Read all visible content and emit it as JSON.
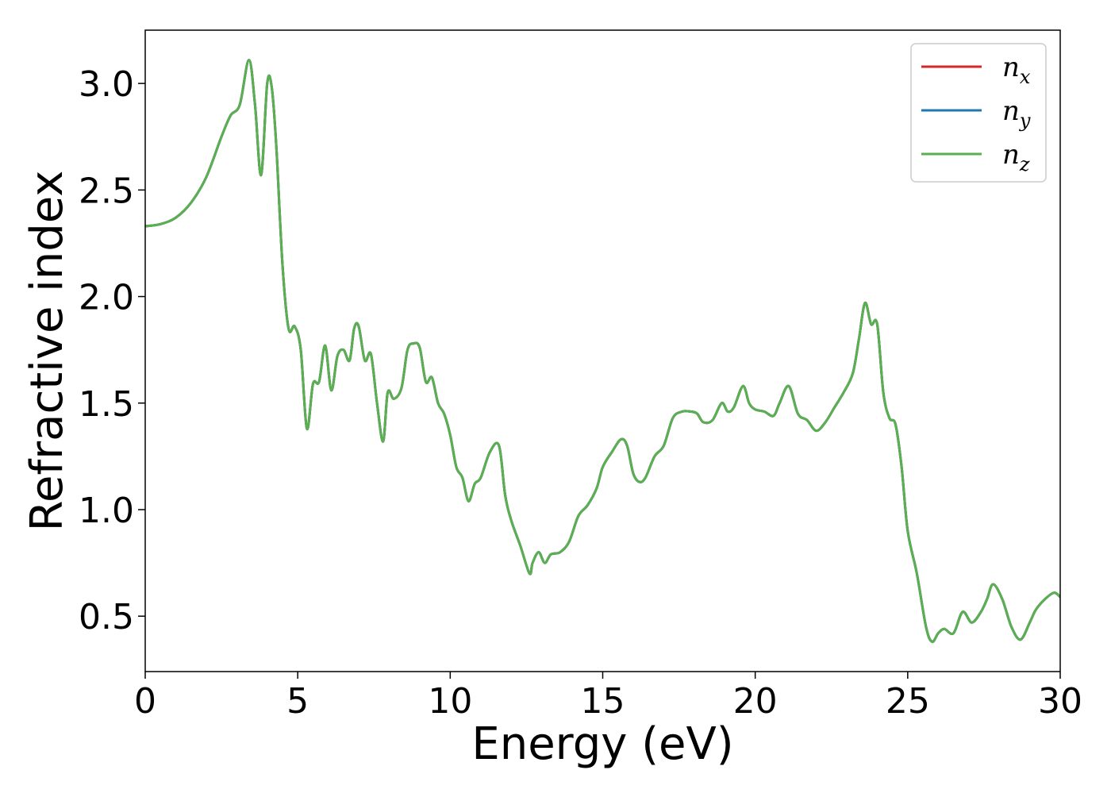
{
  "chart_data": {
    "type": "line",
    "title": "",
    "xlabel": "Energy (eV)",
    "ylabel": "Refractive index",
    "xlim": [
      0,
      30
    ],
    "ylim": [
      0.24,
      3.25
    ],
    "xticks": [
      0,
      5,
      10,
      15,
      20,
      25,
      30
    ],
    "yticks": [
      0.5,
      1.0,
      1.5,
      2.0,
      2.5,
      3.0
    ],
    "xtick_labels": [
      "0",
      "5",
      "10",
      "15",
      "20",
      "25",
      "30"
    ],
    "ytick_labels": [
      "0.5",
      "1.0",
      "1.5",
      "2.0",
      "2.5",
      "3.0"
    ],
    "grid": false,
    "legend_position": "top-right",
    "series": [
      {
        "name": "n",
        "subscript": "x",
        "color": "#d62728"
      },
      {
        "name": "n",
        "subscript": "y",
        "color": "#1f77b4"
      },
      {
        "name": "n",
        "subscript": "z",
        "color": "#5aaf50"
      }
    ],
    "x": [
      0,
      0.5,
      1.0,
      1.5,
      2.0,
      2.5,
      2.8,
      3.1,
      3.4,
      3.6,
      3.8,
      4.0,
      4.15,
      4.3,
      4.5,
      4.7,
      4.9,
      5.1,
      5.3,
      5.5,
      5.7,
      5.9,
      6.1,
      6.3,
      6.5,
      6.7,
      6.85,
      7.0,
      7.2,
      7.4,
      7.6,
      7.8,
      7.95,
      8.15,
      8.4,
      8.6,
      8.8,
      9.0,
      9.2,
      9.4,
      9.6,
      9.8,
      10.0,
      10.2,
      10.4,
      10.6,
      10.8,
      11.0,
      11.3,
      11.6,
      11.8,
      12.0,
      12.3,
      12.6,
      12.7,
      12.9,
      13.1,
      13.3,
      13.6,
      13.9,
      14.2,
      14.5,
      14.8,
      15.0,
      15.3,
      15.6,
      15.8,
      16.0,
      16.2,
      16.4,
      16.7,
      17.0,
      17.3,
      17.6,
      17.9,
      18.1,
      18.3,
      18.6,
      18.9,
      19.1,
      19.3,
      19.6,
      19.8,
      20.0,
      20.3,
      20.6,
      20.8,
      21.1,
      21.4,
      21.7,
      22.0,
      22.3,
      22.6,
      22.9,
      23.2,
      23.4,
      23.6,
      23.8,
      24.0,
      24.2,
      24.4,
      24.6,
      24.8,
      25.0,
      25.3,
      25.6,
      25.8,
      26.0,
      26.2,
      26.5,
      26.8,
      27.1,
      27.4,
      27.6,
      27.8,
      28.1,
      28.4,
      28.7,
      29.0,
      29.2,
      29.5,
      29.8,
      30.0
    ],
    "y": [
      2.33,
      2.34,
      2.37,
      2.44,
      2.56,
      2.75,
      2.85,
      2.9,
      3.11,
      2.9,
      2.57,
      3.0,
      2.98,
      2.7,
      2.15,
      1.85,
      1.86,
      1.75,
      1.38,
      1.59,
      1.6,
      1.77,
      1.56,
      1.72,
      1.75,
      1.7,
      1.85,
      1.86,
      1.7,
      1.73,
      1.5,
      1.32,
      1.55,
      1.52,
      1.57,
      1.75,
      1.78,
      1.76,
      1.6,
      1.62,
      1.5,
      1.45,
      1.35,
      1.2,
      1.15,
      1.04,
      1.12,
      1.15,
      1.27,
      1.3,
      1.07,
      0.95,
      0.83,
      0.7,
      0.75,
      0.8,
      0.75,
      0.79,
      0.8,
      0.85,
      0.97,
      1.02,
      1.1,
      1.2,
      1.27,
      1.33,
      1.3,
      1.17,
      1.13,
      1.15,
      1.25,
      1.3,
      1.43,
      1.46,
      1.46,
      1.45,
      1.41,
      1.42,
      1.5,
      1.46,
      1.48,
      1.58,
      1.5,
      1.47,
      1.46,
      1.44,
      1.5,
      1.58,
      1.45,
      1.42,
      1.37,
      1.41,
      1.48,
      1.55,
      1.64,
      1.8,
      1.97,
      1.87,
      1.87,
      1.55,
      1.43,
      1.4,
      1.2,
      0.9,
      0.7,
      0.45,
      0.38,
      0.42,
      0.44,
      0.42,
      0.52,
      0.47,
      0.52,
      0.58,
      0.65,
      0.58,
      0.45,
      0.39,
      0.47,
      0.53,
      0.58,
      0.61,
      0.59
    ]
  }
}
